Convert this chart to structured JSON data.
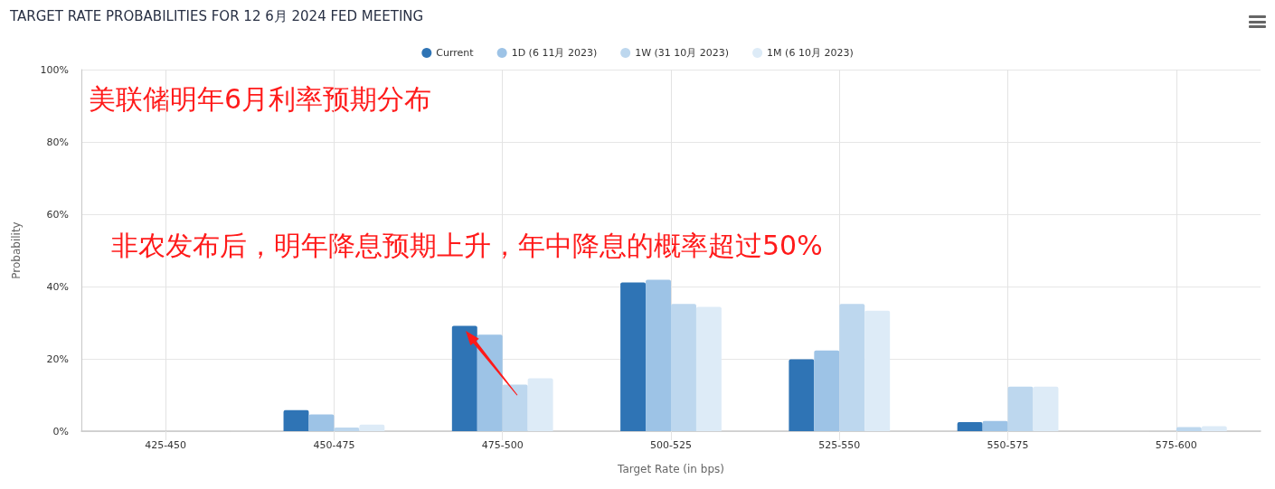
{
  "chart_data": {
    "type": "bar",
    "title": "TARGET RATE PROBABILITIES FOR 12 6月 2024 FED MEETING",
    "xlabel": "Target Rate (in bps)",
    "ylabel": "Probability",
    "categories": [
      "425-450",
      "450-475",
      "475-500",
      "500-525",
      "525-550",
      "550-575",
      "575-600"
    ],
    "series": [
      {
        "name": "Current",
        "color": "#2f74b5",
        "values": [
          0,
          5.8,
          29.1,
          41.1,
          19.9,
          2.5,
          0
        ]
      },
      {
        "name": "1D (6 11月 2023)",
        "color": "#9dc3e6",
        "values": [
          0,
          4.6,
          26.7,
          41.9,
          22.3,
          2.8,
          0
        ]
      },
      {
        "name": "1W (31 10月 2023)",
        "color": "#bdd7ee",
        "values": [
          0,
          1.0,
          12.9,
          35.2,
          35.2,
          12.3,
          1.1
        ]
      },
      {
        "name": "1M (6 10月 2023)",
        "color": "#ddebf7",
        "values": [
          0,
          1.8,
          14.6,
          34.4,
          33.3,
          12.3,
          1.4
        ]
      }
    ],
    "ylim": [
      0,
      100
    ],
    "yticks": [
      {
        "value": 0,
        "label": "0%"
      },
      {
        "value": 20,
        "label": "20%"
      },
      {
        "value": 40,
        "label": "40%"
      },
      {
        "value": 60,
        "label": "60%"
      },
      {
        "value": 80,
        "label": "80%"
      },
      {
        "value": 100,
        "label": "100%"
      }
    ],
    "grid": true,
    "legend": "top",
    "annotations": [
      "美联储明年6月利率预期分布",
      "非农发布后，明年降息预期上升，年中降息的概率超过50%"
    ]
  }
}
